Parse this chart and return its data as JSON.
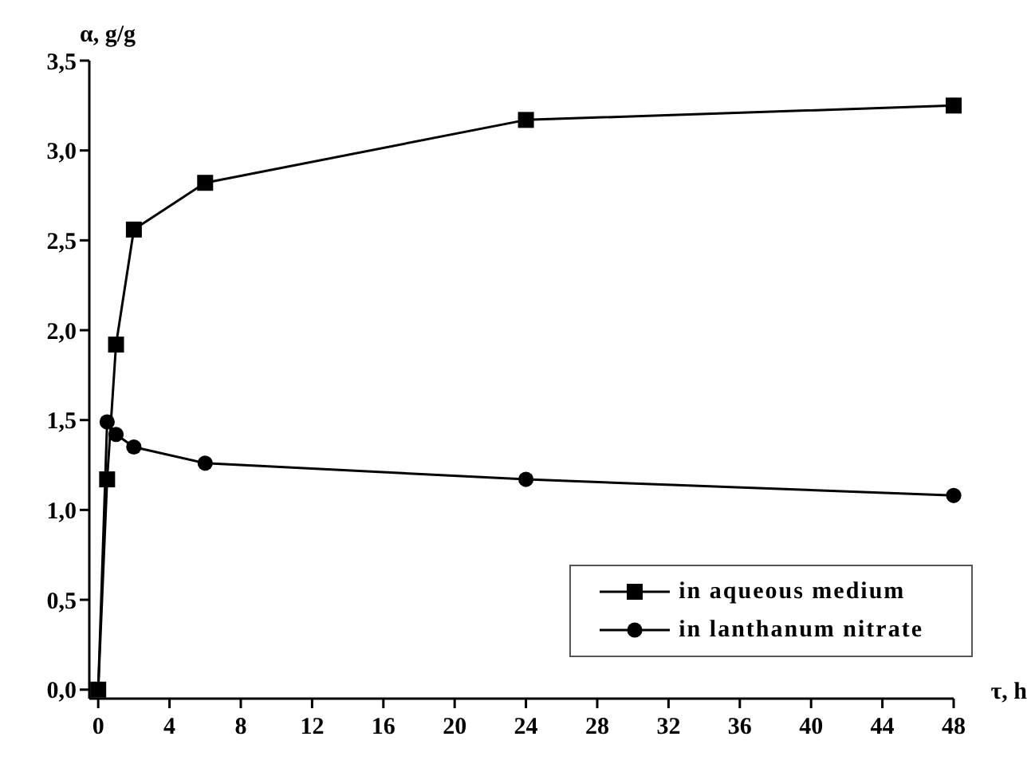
{
  "chart_data": {
    "type": "line",
    "xlabel": "τ, h",
    "ylabel": "α, g/g",
    "xlim": [
      -0.5,
      48
    ],
    "xticks": [
      0,
      4,
      8,
      12,
      16,
      20,
      24,
      28,
      32,
      36,
      40,
      44,
      48
    ],
    "ylim": [
      -0.05,
      3.5
    ],
    "yticks": [
      {
        "value": 0,
        "label": "0,0"
      },
      {
        "value": 0.5,
        "label": "0,5"
      },
      {
        "value": 1,
        "label": "1,0"
      },
      {
        "value": 1.5,
        "label": "1,5"
      },
      {
        "value": 2,
        "label": "2,0"
      },
      {
        "value": 2.5,
        "label": "2,5"
      },
      {
        "value": 3,
        "label": "3,0"
      },
      {
        "value": 3.5,
        "label": "3,5"
      }
    ],
    "x": [
      0,
      0.5,
      1,
      2,
      6,
      24,
      48
    ],
    "series": [
      {
        "name": "in aqueous medium",
        "color": "#000000",
        "marker": "square",
        "values": [
          0,
          1.17,
          1.92,
          2.56,
          2.82,
          3.17,
          3.25
        ]
      },
      {
        "name": "in lanthanum nitrate",
        "color": "#000000",
        "marker": "circle",
        "values": [
          0,
          1.49,
          1.42,
          1.35,
          1.26,
          1.17,
          1.08
        ]
      }
    ],
    "grid": false,
    "legend": "bottom right",
    "line_style": "solid"
  }
}
